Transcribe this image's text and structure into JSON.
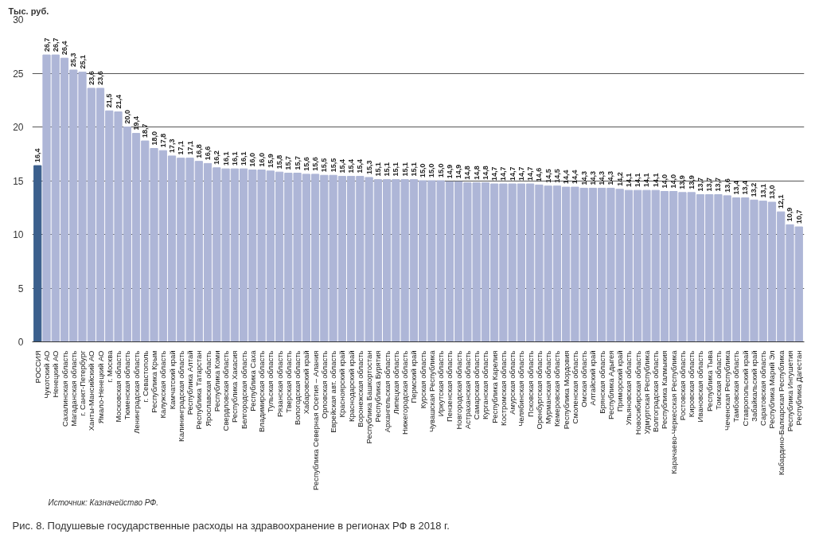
{
  "chart_data": {
    "type": "bar",
    "title": "Рис. 8. Подушевые государственные расходы на здравоохранение в регионах РФ в 2018 г.",
    "ylabel": "Тыс. руб.",
    "annotations": [
      "Источник: Казначейство РФ."
    ],
    "categories": [
      "РОССИЯ",
      "Чукотский АО",
      "Ненецкий АО",
      "Сахалинская область",
      "Магаданская область",
      "г. Санкт-Петербург",
      "Ханты-Мансийский АО",
      "Ямало-Ненецкий АО",
      "г. Москва",
      "Московская область",
      "Тюменская область",
      "Ленинградская область",
      "г. Севастополь",
      "Республика Крым",
      "Калужская область",
      "Камчатский край",
      "Калининградская область",
      "Республика Алтай",
      "Республика Татарстан",
      "Ярославская область",
      "Республика Коми",
      "Свердловская область",
      "Республика Хакасия",
      "Белгородская область",
      "Республика Саха",
      "Владимирская область",
      "Тульская область",
      "Рязанская область",
      "Тверская область",
      "Вологодская область",
      "Хабаровский край",
      "Республика Северная Осетия – Алания",
      "Орловская область",
      "Еврейская авт. область",
      "Красноярский край",
      "Краснодарский край",
      "Воронежская область",
      "Республика Башкортостан",
      "Республика Бурятия",
      "Архангельская область",
      "Липецкая область",
      "Нижегородская область",
      "Пермский край",
      "Курская область",
      "Чувашская Республика",
      "Иркутская область",
      "Пензенская область",
      "Новгородская область",
      "Астраханская область",
      "Самарская область",
      "Курганская область",
      "Республика Карелия",
      "Костромская область",
      "Амурская область",
      "Челябинская область",
      "Псковская область",
      "Оренбургская область",
      "Мурманская область",
      "Кемеровская область",
      "Республика Мордовия",
      "Смоленская область",
      "Омская область",
      "Алтайский край",
      "Брянская область",
      "Республика Адыгея",
      "Приморский край",
      "Ульяновская область",
      "Новосибирская область",
      "Удмуртская Республика",
      "Волгоградская область",
      "Республика Калмыкия",
      "Карачаево-Черкесская Республика",
      "Ростовская область",
      "Кировская область",
      "Ивановская область",
      "Республика Тыва",
      "Томская область",
      "Чеченская Республика",
      "Тамбовская область",
      "Ставропольский край",
      "Забайкальский край",
      "Саратовская область",
      "Республика Марий Эл",
      "Кабардино-Балкарская Республика",
      "Республика Ингушетия",
      "Республика Дагестан"
    ],
    "values": [
      16.4,
      26.7,
      26.7,
      26.4,
      25.3,
      25.1,
      23.6,
      23.6,
      21.5,
      21.4,
      20.0,
      19.4,
      18.7,
      18.0,
      17.8,
      17.3,
      17.1,
      17.1,
      16.8,
      16.6,
      16.2,
      16.1,
      16.1,
      16.1,
      16.0,
      16.0,
      15.9,
      15.8,
      15.7,
      15.7,
      15.6,
      15.6,
      15.5,
      15.5,
      15.4,
      15.4,
      15.4,
      15.3,
      15.1,
      15.1,
      15.1,
      15.1,
      15.1,
      15.0,
      15.0,
      15.0,
      14.9,
      14.9,
      14.8,
      14.8,
      14.8,
      14.7,
      14.7,
      14.7,
      14.7,
      14.7,
      14.6,
      14.5,
      14.5,
      14.4,
      14.4,
      14.3,
      14.3,
      14.3,
      14.3,
      14.2,
      14.1,
      14.1,
      14.1,
      14.1,
      14.0,
      14.0,
      13.9,
      13.9,
      13.7,
      13.7,
      13.7,
      13.6,
      13.4,
      13.4,
      13.2,
      13.1,
      13.0,
      12.1,
      10.9,
      10.7
    ],
    "colors": [
      "#3b5f8d",
      "#aeb6d7",
      "#aeb6d7",
      "#aeb6d7",
      "#aeb6d7",
      "#aeb6d7",
      "#aeb6d7",
      "#aeb6d7",
      "#aeb6d7",
      "#aeb6d7",
      "#aeb6d7",
      "#aeb6d7",
      "#aeb6d7",
      "#aeb6d7",
      "#aeb6d7",
      "#aeb6d7",
      "#aeb6d7",
      "#aeb6d7",
      "#aeb6d7",
      "#aeb6d7",
      "#aeb6d7",
      "#aeb6d7",
      "#aeb6d7",
      "#aeb6d7",
      "#aeb6d7",
      "#aeb6d7",
      "#aeb6d7",
      "#aeb6d7",
      "#aeb6d7",
      "#aeb6d7",
      "#aeb6d7",
      "#aeb6d7",
      "#aeb6d7",
      "#aeb6d7",
      "#aeb6d7",
      "#aeb6d7",
      "#aeb6d7",
      "#aeb6d7",
      "#aeb6d7",
      "#aeb6d7",
      "#aeb6d7",
      "#aeb6d7",
      "#aeb6d7",
      "#aeb6d7",
      "#aeb6d7",
      "#aeb6d7",
      "#aeb6d7",
      "#aeb6d7",
      "#aeb6d7",
      "#aeb6d7",
      "#aeb6d7",
      "#aeb6d7",
      "#aeb6d7",
      "#aeb6d7",
      "#aeb6d7",
      "#aeb6d7",
      "#aeb6d7",
      "#aeb6d7",
      "#aeb6d7",
      "#aeb6d7",
      "#aeb6d7",
      "#aeb6d7",
      "#aeb6d7",
      "#aeb6d7",
      "#aeb6d7",
      "#aeb6d7",
      "#aeb6d7",
      "#aeb6d7",
      "#aeb6d7",
      "#aeb6d7",
      "#aeb6d7",
      "#aeb6d7",
      "#aeb6d7",
      "#aeb6d7",
      "#aeb6d7",
      "#aeb6d7",
      "#aeb6d7",
      "#aeb6d7",
      "#aeb6d7",
      "#aeb6d7",
      "#aeb6d7",
      "#aeb6d7",
      "#aeb6d7",
      "#aeb6d7",
      "#aeb6d7",
      "#aeb6d7"
    ],
    "value_labels": [
      "16,4",
      "26,7",
      "26,7",
      "26,4",
      "25,3",
      "25,1",
      "23,6",
      "23,6",
      "21,5",
      "21,4",
      "20,0",
      "19,4",
      "18,7",
      "18,0",
      "17,8",
      "17,3",
      "17,1",
      "17,1",
      "16,8",
      "16,6",
      "16,2",
      "16,1",
      "16,1",
      "16,1",
      "16,0",
      "16,0",
      "15,9",
      "15,8",
      "15,7",
      "15,7",
      "15,6",
      "15,6",
      "15,5",
      "15,5",
      "15,4",
      "15,4",
      "15,4",
      "15,3",
      "15,1",
      "15,1",
      "15,1",
      "15,1",
      "15,1",
      "15,0",
      "15,0",
      "15,0",
      "14,9",
      "14,9",
      "14,8",
      "14,8",
      "14,8",
      "14,7",
      "14,7",
      "14,7",
      "14,7",
      "14,7",
      "14,6",
      "14,5",
      "14,5",
      "14,4",
      "14,4",
      "14,3",
      "14,3",
      "14,3",
      "14,3",
      "14,2",
      "14,1",
      "14,1",
      "14,1",
      "14,1",
      "14,0",
      "14,0",
      "13,9",
      "13,9",
      "13,7",
      "13,7",
      "13,7",
      "13,6",
      "13,4",
      "13,4",
      "13,2",
      "13,1",
      "13,0",
      "12,1",
      "10,9",
      "10,7"
    ],
    "ylim": [
      0,
      30
    ],
    "yticks": [
      0,
      5,
      10,
      15,
      20,
      25,
      30
    ],
    "grid": "y"
  }
}
